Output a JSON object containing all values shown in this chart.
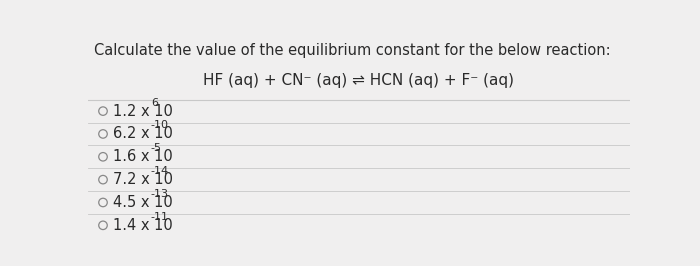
{
  "title": "Calculate the value of the equilibrium constant for the below reaction:",
  "reaction_parts": {
    "main": "HF (aq) + CN",
    "cn_sup": "⁻",
    "middle": " (aq) ⇌ HCN (aq) + F",
    "f_sup": "⁻",
    "end": " (aq)"
  },
  "options": [
    {
      "base": "1.2 x 10",
      "exp": "6"
    },
    {
      "base": "6.2 x 10",
      "exp": "-10"
    },
    {
      "base": "1.6 x 10",
      "exp": "-5"
    },
    {
      "base": "7.2 x 10",
      "exp": "-14"
    },
    {
      "base": "4.5 x 10",
      "exp": "-13"
    },
    {
      "base": "1.4 x 10",
      "exp": "-11"
    }
  ],
  "bg_color": "#f0efef",
  "text_color": "#2a2a2a",
  "line_color": "#c8c8c8",
  "title_fontsize": 10.5,
  "option_fontsize": 10.5,
  "reaction_fontsize": 11.0,
  "sup_fontsize": 8.0
}
